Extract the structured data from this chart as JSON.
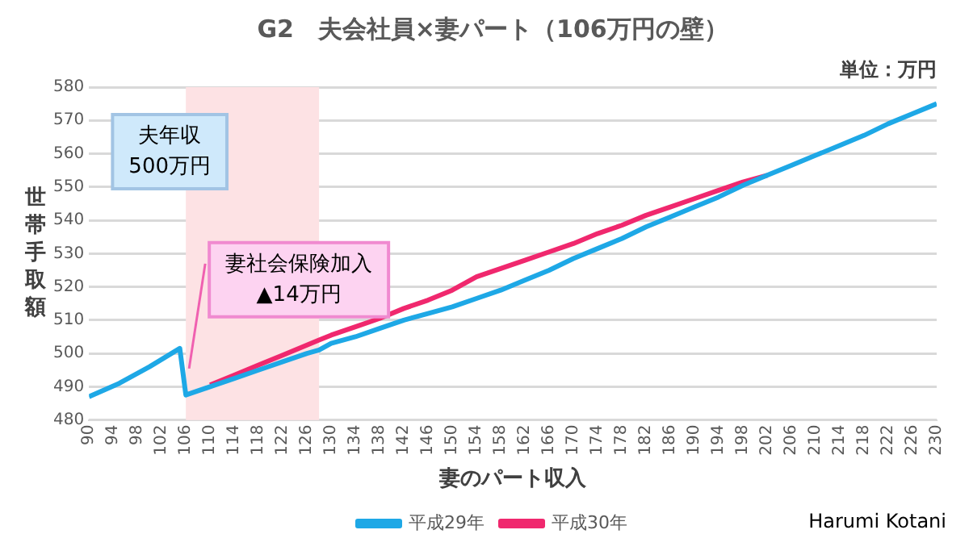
{
  "chart_data": {
    "type": "line",
    "title": "G2　夫会社員×妻パート（106万円の壁）",
    "xlabel": "妻のパート収入",
    "ylabel": "世帯手取額",
    "xlim": [
      90,
      230
    ],
    "xticks": [
      90,
      94,
      98,
      102,
      106,
      110,
      114,
      118,
      122,
      126,
      130,
      134,
      138,
      142,
      146,
      150,
      154,
      158,
      162,
      166,
      170,
      174,
      178,
      182,
      186,
      190,
      194,
      198,
      202,
      206,
      210,
      214,
      218,
      222,
      226,
      230
    ],
    "ylim": [
      480,
      580
    ],
    "yticks": [
      480,
      490,
      500,
      510,
      520,
      530,
      540,
      550,
      560,
      570,
      580
    ],
    "grid": "y",
    "legend": "bottom",
    "line_style": "solid",
    "marker": "none",
    "series": [
      {
        "name": "平成30年",
        "color": "#f0286e",
        "x": [
          110,
          114,
          118,
          122,
          126,
          128,
          130,
          134,
          138,
          142,
          146,
          150,
          154,
          158,
          162,
          166,
          170,
          174,
          178,
          182,
          186,
          190,
          194,
          198,
          202
        ],
        "values": [
          490.5,
          493.5,
          496.5,
          499.5,
          502.5,
          504,
          505.5,
          508,
          510.5,
          513.5,
          516,
          519,
          523,
          525.5,
          528,
          530.5,
          533,
          536,
          538.5,
          541.5,
          544,
          546.5,
          549,
          551.5,
          553.5
        ]
      },
      {
        "name": "平成29年",
        "color": "#1ea8e6",
        "x": [
          90,
          95,
          100,
          105,
          106,
          110,
          114,
          118,
          122,
          126,
          128,
          130,
          134,
          138,
          142,
          146,
          150,
          154,
          158,
          162,
          166,
          170,
          174,
          178,
          182,
          186,
          190,
          194,
          198,
          202,
          206,
          210,
          214,
          218,
          222,
          226,
          230
        ],
        "values": [
          487,
          491,
          496,
          501.5,
          487.5,
          490,
          492.5,
          495,
          497.5,
          500,
          501,
          503,
          505,
          507.5,
          510,
          512,
          514,
          516.5,
          519,
          522,
          525,
          528.5,
          531.5,
          534.5,
          538,
          541,
          544,
          547,
          550.5,
          553.5,
          556.5,
          559.5,
          562.5,
          565.5,
          569,
          572,
          575
        ]
      }
    ],
    "bands": [
      {
        "axis": "x",
        "from": 106,
        "to": 128,
        "color": "#fde2e4"
      }
    ],
    "annotations": [
      "夫年収\n500万円",
      {
        "text": "妻社会保険加入\n▲14万円",
        "x": 106,
        "y": 494
      },
      "単位：万円",
      "Harumi Kotani"
    ]
  }
}
